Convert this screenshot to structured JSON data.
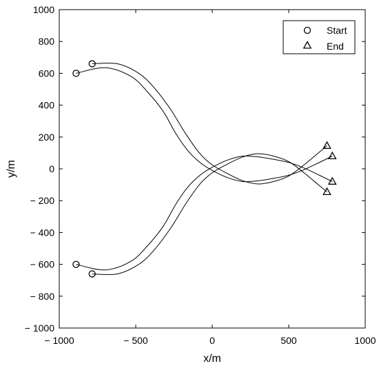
{
  "chart_data": {
    "type": "line",
    "title": "",
    "xlabel": "x/m",
    "ylabel": "y/m",
    "xlim": [
      -1000,
      1000
    ],
    "ylim": [
      -1000,
      1000
    ],
    "xticks": [
      -1000,
      -500,
      0,
      500,
      1000
    ],
    "yticks": [
      -1000,
      -800,
      -600,
      -400,
      -200,
      0,
      200,
      400,
      600,
      800,
      1000
    ],
    "xtick_labels": [
      "− 1000",
      "− 500",
      "0",
      "500",
      "1000"
    ],
    "ytick_labels": [
      "− 1000",
      "− 800",
      "− 600",
      "− 400",
      "− 200",
      "0",
      "200",
      "400",
      "600",
      "800",
      "1000"
    ],
    "grid": false,
    "legend": {
      "placement": "top-right",
      "entries": [
        {
          "label": "Start",
          "marker": "circle"
        },
        {
          "label": "End",
          "marker": "triangle"
        }
      ]
    },
    "series": [
      {
        "x": [
          -890,
          -700,
          -530,
          -420,
          -320,
          -240,
          -160,
          -80,
          0,
          100,
          200,
          300,
          400,
          500,
          600,
          700,
          785
        ],
        "y": [
          600,
          635,
          580,
          480,
          360,
          225,
          115,
          40,
          -10,
          -55,
          -80,
          -75,
          -60,
          -40,
          -5,
          40,
          80
        ]
      },
      {
        "x": [
          -785,
          -620,
          -480,
          -380,
          -270,
          -170,
          -80,
          0,
          100,
          200,
          300,
          400,
          500,
          600,
          700,
          750
        ],
        "y": [
          660,
          660,
          600,
          510,
          370,
          215,
          95,
          25,
          -30,
          -75,
          -95,
          -80,
          -45,
          25,
          105,
          145
        ]
      },
      {
        "x": [
          -890,
          -700,
          -530,
          -420,
          -320,
          -240,
          -160,
          -80,
          0,
          100,
          200,
          300,
          400,
          500,
          600,
          700,
          785
        ],
        "y": [
          -600,
          -635,
          -580,
          -480,
          -360,
          -225,
          -115,
          -40,
          10,
          55,
          80,
          75,
          60,
          40,
          5,
          -40,
          -80
        ]
      },
      {
        "x": [
          -785,
          -620,
          -480,
          -380,
          -270,
          -170,
          -80,
          0,
          100,
          200,
          300,
          400,
          500,
          600,
          700,
          750
        ],
        "y": [
          -660,
          -660,
          -600,
          -510,
          -370,
          -215,
          -95,
          -25,
          30,
          75,
          95,
          80,
          45,
          -25,
          -105,
          -145
        ]
      }
    ],
    "start_points": [
      {
        "x": -890,
        "y": 600
      },
      {
        "x": -785,
        "y": 660
      },
      {
        "x": -890,
        "y": -600
      },
      {
        "x": -785,
        "y": -660
      }
    ],
    "end_points": [
      {
        "x": 750,
        "y": 145
      },
      {
        "x": 785,
        "y": 80
      },
      {
        "x": 785,
        "y": -80
      },
      {
        "x": 750,
        "y": -145
      }
    ],
    "colors": {
      "line": "#000000",
      "background": "#ffffff"
    }
  }
}
